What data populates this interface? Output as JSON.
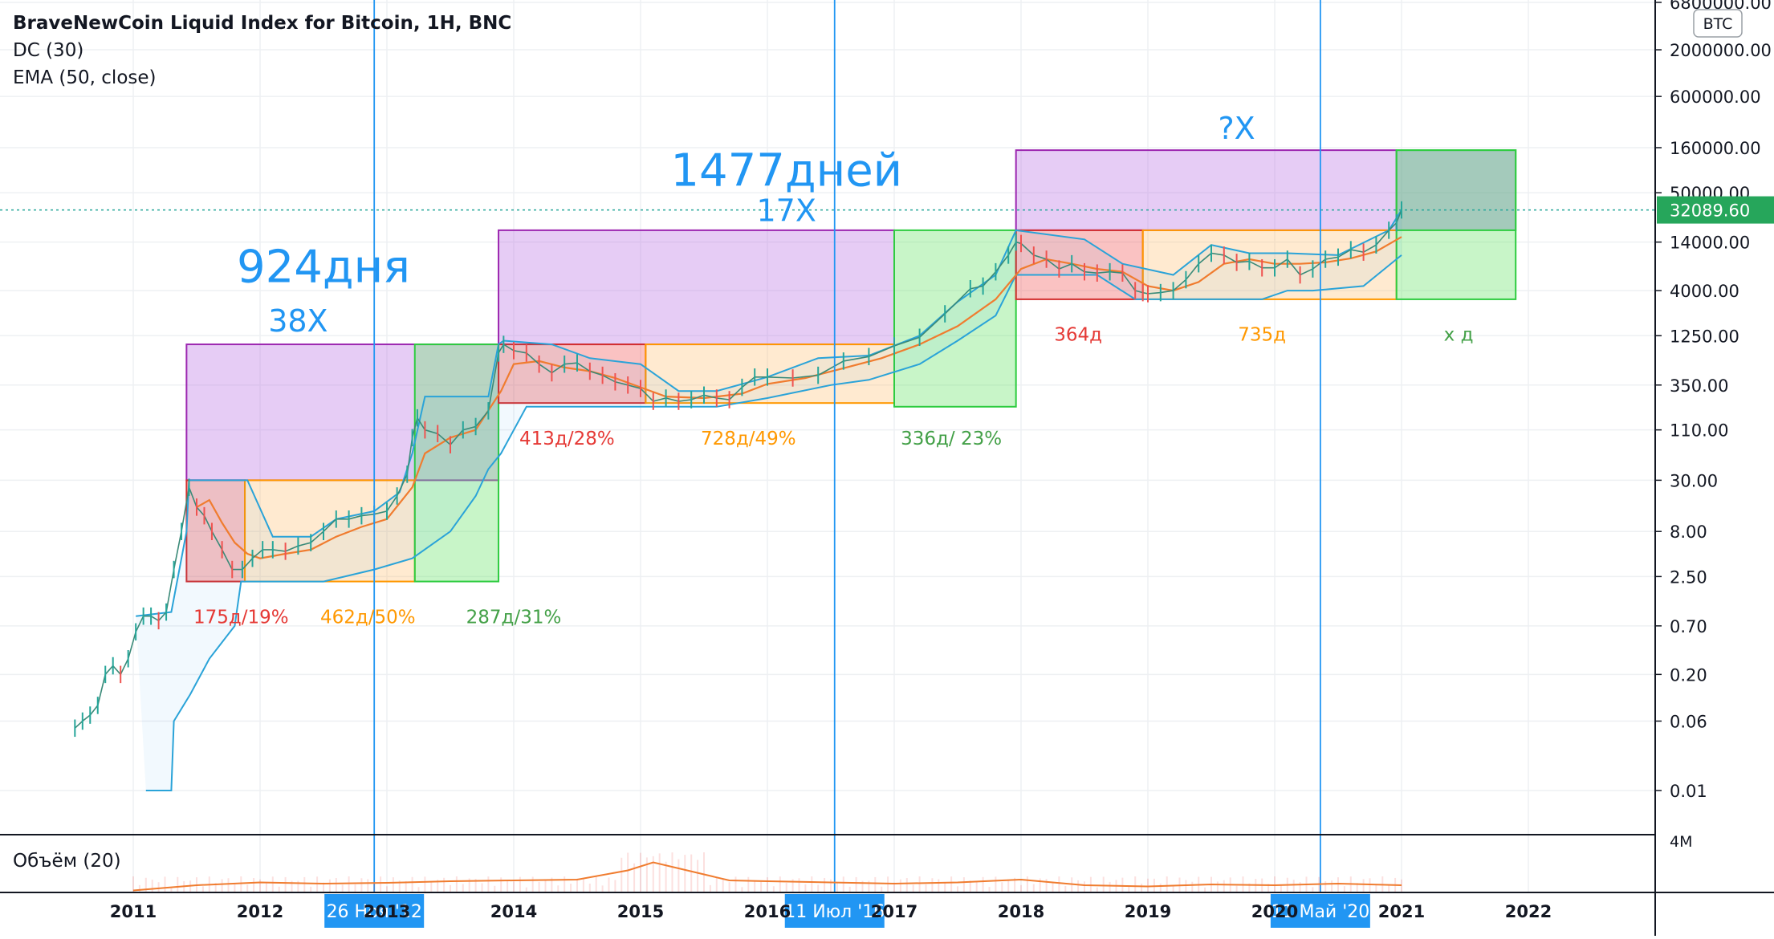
{
  "legend": {
    "title": "BraveNewCoin Liquid Index for Bitcoin, 1H, BNC",
    "indicators": [
      "DC (30)",
      "EMA (50, close)"
    ],
    "volume": "Объём (20)"
  },
  "currency_badge": "BTC",
  "current_price": "32089.60",
  "colors": {
    "accent_blue": "#2196f3",
    "red": "#e53935",
    "orange": "#ff9800",
    "green": "#43a047",
    "purple": "#9c27b0",
    "ema": "#f07c2f",
    "donchian": "#2aa3d8",
    "price_badge": "#26a65b"
  },
  "chart_data": {
    "type": "line",
    "title": "BraveNewCoin Liquid Index for Bitcoin, 1H, BNC",
    "log_scale_y": true,
    "xlim": [
      2010.0,
      2022.0
    ],
    "ylim": [
      0.005,
      6800000
    ],
    "x_ticks": [
      "2011",
      "2012",
      "2013",
      "2014",
      "2015",
      "2016",
      "2017",
      "2018",
      "2019",
      "2020",
      "2021",
      "2022"
    ],
    "y_ticks": [
      "6800000.00",
      "2000000.00",
      "600000.00",
      "160000.00",
      "50000.00",
      "14000.00",
      "4000.00",
      "1250.00",
      "350.00",
      "110.00",
      "30.00",
      "8.00",
      "2.50",
      "0.70",
      "0.20",
      "0.06",
      "0.01"
    ],
    "vlines": [
      {
        "x": 2012.9,
        "label": "26 Ноя '12"
      },
      {
        "x": 2016.53,
        "label": "11 Июл '16"
      },
      {
        "x": 2020.36,
        "label": "11 Май '20"
      }
    ],
    "price": {
      "x": [
        2010.54,
        2010.6,
        2010.66,
        2010.72,
        2010.78,
        2010.84,
        2010.9,
        2010.96,
        2011.02,
        2011.08,
        2011.14,
        2011.2,
        2011.26,
        2011.32,
        2011.38,
        2011.44,
        2011.5,
        2011.56,
        2011.62,
        2011.7,
        2011.78,
        2011.86,
        2011.94,
        2012.02,
        2012.1,
        2012.2,
        2012.3,
        2012.4,
        2012.5,
        2012.6,
        2012.7,
        2012.8,
        2012.9,
        2013.0,
        2013.08,
        2013.16,
        2013.2,
        2013.24,
        2013.3,
        2013.4,
        2013.5,
        2013.6,
        2013.7,
        2013.8,
        2013.88,
        2013.92,
        2014.0,
        2014.1,
        2014.2,
        2014.3,
        2014.4,
        2014.5,
        2014.6,
        2014.7,
        2014.8,
        2014.9,
        2015.0,
        2015.1,
        2015.2,
        2015.3,
        2015.4,
        2015.5,
        2015.6,
        2015.7,
        2015.8,
        2015.9,
        2016.0,
        2016.2,
        2016.4,
        2016.6,
        2016.8,
        2017.0,
        2017.2,
        2017.4,
        2017.6,
        2017.7,
        2017.8,
        2017.9,
        2017.96,
        2018.0,
        2018.1,
        2018.2,
        2018.3,
        2018.4,
        2018.5,
        2018.6,
        2018.7,
        2018.8,
        2018.9,
        2018.96,
        2019.0,
        2019.1,
        2019.2,
        2019.3,
        2019.4,
        2019.5,
        2019.6,
        2019.7,
        2019.8,
        2019.9,
        2020.0,
        2020.1,
        2020.2,
        2020.3,
        2020.4,
        2020.5,
        2020.6,
        2020.7,
        2020.8,
        2020.9,
        2020.96,
        2021.0
      ],
      "y": [
        0.05,
        0.06,
        0.07,
        0.09,
        0.2,
        0.25,
        0.2,
        0.3,
        0.6,
        0.9,
        0.9,
        0.8,
        1.0,
        3.0,
        8.0,
        25.0,
        15.0,
        12.0,
        8.0,
        5.0,
        3.0,
        3.0,
        4.0,
        5.0,
        5.0,
        4.8,
        5.5,
        6.0,
        8.0,
        11.0,
        11.0,
        12.0,
        12.5,
        13.5,
        20.0,
        35.0,
        90.0,
        150.0,
        110.0,
        100.0,
        75.0,
        110.0,
        120.0,
        180.0,
        800.0,
        1000.0,
        850.0,
        800.0,
        600.0,
        480.0,
        600.0,
        620.0,
        500.0,
        450.0,
        380.0,
        350.0,
        320.0,
        230.0,
        250.0,
        230.0,
        240.0,
        270.0,
        250.0,
        240.0,
        330.0,
        430.0,
        430.0,
        420.0,
        450.0,
        650.0,
        730.0,
        960.0,
        1200.0,
        2200.0,
        4200.0,
        4500.0,
        6500.0,
        10000.0,
        14000.0,
        13500.0,
        10000.0,
        9000.0,
        7000.0,
        8000.0,
        6500.0,
        6300.0,
        6500.0,
        6300.0,
        4000.0,
        3800.0,
        3700.0,
        3800.0,
        4000.0,
        5300.0,
        8000.0,
        10500.0,
        10000.0,
        8300.0,
        8500.0,
        7200.0,
        7200.0,
        9000.0,
        6000.0,
        7000.0,
        9000.0,
        9500.0,
        11500.0,
        10800.0,
        13000.0,
        19000.0,
        23000.0,
        32089.6
      ]
    },
    "ema": {
      "x": [
        2011.5,
        2011.6,
        2011.7,
        2011.8,
        2011.9,
        2012.0,
        2012.2,
        2012.4,
        2012.6,
        2012.8,
        2013.0,
        2013.2,
        2013.3,
        2013.5,
        2013.7,
        2013.9,
        2014.0,
        2014.2,
        2014.4,
        2014.6,
        2014.8,
        2015.0,
        2015.2,
        2015.5,
        2015.8,
        2016.0,
        2016.3,
        2016.6,
        2016.9,
        2017.2,
        2017.5,
        2017.8,
        2018.0,
        2018.2,
        2018.4,
        2018.6,
        2018.8,
        2019.0,
        2019.2,
        2019.4,
        2019.6,
        2019.8,
        2020.0,
        2020.2,
        2020.4,
        2020.6,
        2020.8,
        2021.0
      ],
      "y": [
        15.0,
        18.0,
        10.0,
        6.0,
        4.5,
        4.0,
        4.5,
        5.0,
        7.0,
        9.0,
        11.0,
        25.0,
        60.0,
        90.0,
        110.0,
        300.0,
        600.0,
        650.0,
        550.0,
        500.0,
        420.0,
        330.0,
        260.0,
        250.0,
        280.0,
        360.0,
        420.0,
        540.0,
        700.0,
        1000.0,
        1600.0,
        3200.0,
        7000.0,
        9000.0,
        8000.0,
        7000.0,
        6500.0,
        4500.0,
        4000.0,
        5000.0,
        8000.0,
        9000.0,
        8000.0,
        8000.0,
        8300.0,
        9200.0,
        11000.0,
        16000.0
      ]
    },
    "donchian": {
      "upper": {
        "x": [
          2011.02,
          2011.3,
          2011.42,
          2011.44,
          2011.9,
          2012.1,
          2012.4,
          2012.6,
          2012.9,
          2013.1,
          2013.2,
          2013.3,
          2013.8,
          2013.88,
          2013.92,
          2014.3,
          2014.6,
          2015.0,
          2015.3,
          2015.6,
          2016.0,
          2016.4,
          2016.8,
          2017.2,
          2017.5,
          2017.8,
          2017.96,
          2018.5,
          2018.8,
          2019.2,
          2019.5,
          2019.8,
          2020.1,
          2020.5,
          2020.9,
          2021.0
        ],
        "y": [
          0.9,
          1.0,
          8.0,
          30.0,
          30.0,
          7.0,
          7.0,
          11.0,
          13.5,
          22.0,
          60.0,
          260.0,
          260.0,
          1000.0,
          1100.0,
          1000.0,
          700.0,
          600.0,
          300.0,
          300.0,
          430.0,
          700.0,
          750.0,
          1250.0,
          3000.0,
          6000.0,
          19000.0,
          15000.0,
          8000.0,
          6000.0,
          13000.0,
          10500.0,
          10500.0,
          10000.0,
          19000.0,
          32000.0
        ]
      },
      "lower": {
        "x": [
          2011.1,
          2011.3,
          2011.32,
          2011.45,
          2011.6,
          2011.8,
          2011.85,
          2012.2,
          2012.5,
          2012.9,
          2013.2,
          2013.5,
          2013.7,
          2013.8,
          2013.9,
          2014.1,
          2014.5,
          2015.0,
          2015.3,
          2015.6,
          2016.0,
          2016.5,
          2016.8,
          2017.2,
          2017.5,
          2017.8,
          2017.96,
          2018.3,
          2018.6,
          2018.9,
          2019.3,
          2019.6,
          2019.9,
          2020.1,
          2020.3,
          2020.7,
          2020.96,
          2021.0
        ],
        "y": [
          0.01,
          0.01,
          0.06,
          0.12,
          0.3,
          0.7,
          2.2,
          2.2,
          2.2,
          3.0,
          4.0,
          8.0,
          20.0,
          40.0,
          60.0,
          200.0,
          200.0,
          200.0,
          200.0,
          200.0,
          250.0,
          350.0,
          400.0,
          600.0,
          1100.0,
          2100.0,
          6000.0,
          6000.0,
          6000.0,
          3200.0,
          3200.0,
          3200.0,
          3200.0,
          4000.0,
          4000.0,
          4500.0,
          9000.0,
          10000.0
        ]
      }
    },
    "boxes": [
      {
        "kind": "purple",
        "x0": 2011.42,
        "x1": 2013.88,
        "y0": 30.0,
        "y1": 1000.0
      },
      {
        "kind": "red",
        "x0": 2011.42,
        "x1": 2011.88,
        "y0": 2.2,
        "y1": 30.0
      },
      {
        "kind": "orange",
        "x0": 2011.88,
        "x1": 2013.22,
        "y0": 2.2,
        "y1": 30.0
      },
      {
        "kind": "green",
        "x0": 2013.22,
        "x1": 2013.88,
        "y0": 2.2,
        "y1": 1000.0
      },
      {
        "kind": "purple",
        "x0": 2013.88,
        "x1": 2017.0,
        "y0": 1000.0,
        "y1": 19000.0
      },
      {
        "kind": "red",
        "x0": 2013.88,
        "x1": 2015.04,
        "y0": 220.0,
        "y1": 1000.0
      },
      {
        "kind": "orange",
        "x0": 2015.04,
        "x1": 2017.0,
        "y0": 220.0,
        "y1": 1000.0
      },
      {
        "kind": "green",
        "x0": 2017.0,
        "x1": 2017.96,
        "y0": 200.0,
        "y1": 19000.0
      },
      {
        "kind": "purple",
        "x0": 2017.96,
        "x1": 2020.96,
        "y0": 19000.0,
        "y1": 150000.0
      },
      {
        "kind": "red",
        "x0": 2017.96,
        "x1": 2018.96,
        "y0": 3200.0,
        "y1": 19000.0
      },
      {
        "kind": "orange",
        "x0": 2018.96,
        "x1": 2020.96,
        "y0": 3200.0,
        "y1": 19000.0
      },
      {
        "kind": "green",
        "x0": 2020.96,
        "x1": 2021.9,
        "y0": 3200.0,
        "y1": 150000.0
      },
      {
        "kind": "gray",
        "x0": 2020.96,
        "x1": 2021.9,
        "y0": 19000.0,
        "y1": 150000.0
      }
    ],
    "annotations": [
      {
        "text": "924дня",
        "x": 2012.5,
        "y": 5000,
        "color": "accent_blue",
        "size": 56
      },
      {
        "text": "38X",
        "x": 2012.3,
        "y": 1400,
        "color": "accent_blue",
        "size": 38
      },
      {
        "text": "1477дней",
        "x": 2016.15,
        "y": 60000,
        "color": "accent_blue",
        "size": 56
      },
      {
        "text": "17X",
        "x": 2016.15,
        "y": 24000,
        "color": "accent_blue",
        "size": 38
      },
      {
        "text": "?X",
        "x": 2019.7,
        "y": 200000,
        "color": "accent_blue",
        "size": 38
      },
      {
        "text": "175д/19%",
        "x": 2011.85,
        "y": 0.75,
        "color": "red",
        "size": 23
      },
      {
        "text": "462д/50%",
        "x": 2012.85,
        "y": 0.75,
        "color": "orange",
        "size": 23
      },
      {
        "text": "287д/31%",
        "x": 2014.0,
        "y": 0.75,
        "color": "green",
        "size": 23
      },
      {
        "text": "413д/28%",
        "x": 2014.42,
        "y": 75,
        "color": "red",
        "size": 23
      },
      {
        "text": "728д/49%",
        "x": 2015.85,
        "y": 75,
        "color": "orange",
        "size": 23
      },
      {
        "text": "336д/ 23%",
        "x": 2017.45,
        "y": 75,
        "color": "green",
        "size": 23
      },
      {
        "text": "364д",
        "x": 2018.45,
        "y": 1100,
        "color": "red",
        "size": 23
      },
      {
        "text": "735д",
        "x": 2019.9,
        "y": 1100,
        "color": "orange",
        "size": 23
      },
      {
        "text": "x д",
        "x": 2021.45,
        "y": 1100,
        "color": "green",
        "size": 23
      }
    ],
    "volume": {
      "axis_label": "4M",
      "ma_x": [
        2011.0,
        2011.5,
        2012.0,
        2012.5,
        2013.0,
        2013.5,
        2014.0,
        2014.5,
        2014.9,
        2015.1,
        2015.3,
        2015.7,
        2016.0,
        2016.5,
        2017.0,
        2017.5,
        2018.0,
        2018.5,
        2019.0,
        2019.5,
        2020.0,
        2020.5,
        2021.0
      ],
      "ma_y": [
        0.05,
        0.18,
        0.25,
        0.22,
        0.24,
        0.28,
        0.3,
        0.32,
        0.55,
        0.75,
        0.6,
        0.3,
        0.28,
        0.25,
        0.22,
        0.25,
        0.32,
        0.18,
        0.15,
        0.2,
        0.18,
        0.22,
        0.18
      ]
    }
  }
}
